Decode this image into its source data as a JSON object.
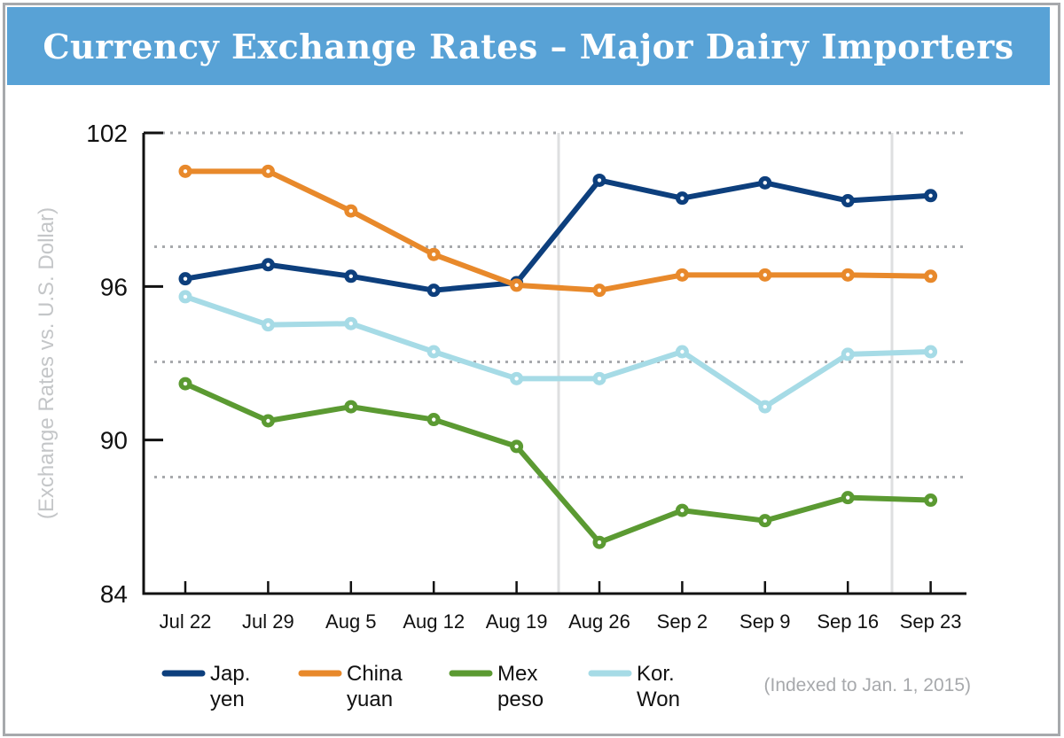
{
  "chart_data": {
    "type": "line",
    "title": "Currency Exchange Rates – Major Dairy Importers",
    "xlabel": "",
    "ylabel": "(Exchange Rates vs. U.S. Dollar)",
    "ylim": [
      84,
      102
    ],
    "yticks": [
      102,
      96,
      90,
      84
    ],
    "grid_dotted_y": [
      102,
      97.55,
      93.05,
      88.55
    ],
    "categories": [
      "Jul 22",
      "Jul 29",
      "Aug 5",
      "Aug 12",
      "Aug 19",
      "Aug 26",
      "Sep 2",
      "Sep 9",
      "Sep 16",
      "Sep 23"
    ],
    "series": [
      {
        "name": "Jap. yen",
        "legend_lines": [
          "Jap.",
          "yen"
        ],
        "color": "#0d3f7d",
        "values": [
          96.3,
          96.85,
          96.4,
          95.85,
          96.15,
          100.15,
          99.45,
          100.05,
          99.35,
          99.55
        ]
      },
      {
        "name": "China yuan",
        "legend_lines": [
          "China",
          "yuan"
        ],
        "color": "#e8892b",
        "values": [
          100.5,
          100.5,
          98.95,
          97.25,
          96.05,
          95.85,
          96.45,
          96.45,
          96.45,
          96.4
        ]
      },
      {
        "name": "Mex peso",
        "legend_lines": [
          "Mex",
          "peso"
        ],
        "color": "#5b9a32",
        "values": [
          92.2,
          90.75,
          91.3,
          90.8,
          89.75,
          86.0,
          87.25,
          86.85,
          87.75,
          87.65
        ]
      },
      {
        "name": "Kor. Won",
        "legend_lines": [
          "Kor.",
          "Won"
        ],
        "color": "#a6dbe6",
        "values": [
          95.6,
          94.5,
          94.55,
          93.45,
          92.4,
          92.4,
          93.45,
          91.3,
          93.35,
          93.45
        ]
      }
    ],
    "note": "(Indexed to Jan. 1, 2015)"
  }
}
